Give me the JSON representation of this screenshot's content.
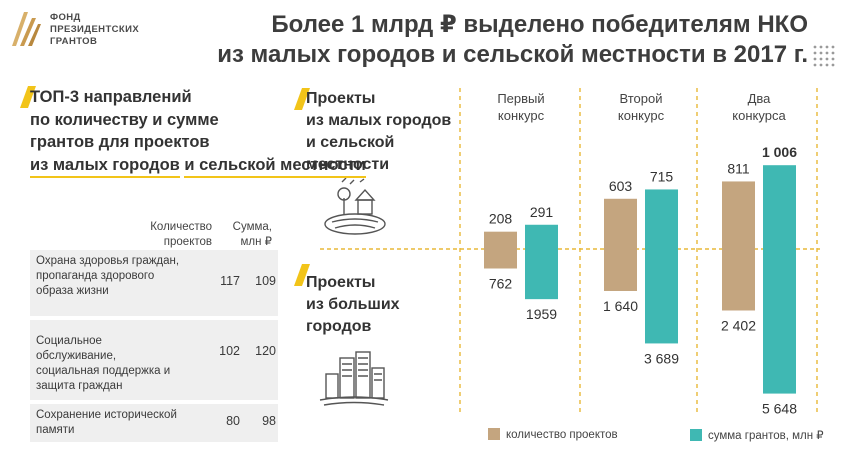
{
  "logo": {
    "lines": [
      "ФОНД",
      "ПРЕЗИДЕНТСКИХ",
      "ГРАНТОВ"
    ]
  },
  "title": {
    "line1": "Более 1 млрд ₽ выделено победителям НКО",
    "line2": "из малых городов и сельской местности в 2017 г."
  },
  "left_heading": {
    "lines": [
      "ТОП-3 направлений",
      "по количеству и сумме",
      "грантов для проектов",
      "из малых городов",
      "и сельской местности"
    ]
  },
  "table": {
    "col1": "Количество проектов",
    "col2": "Сумма, млн ₽",
    "rows": [
      {
        "name": "Охрана здоровья граждан, пропаганда здорового образа жизни",
        "count": "117",
        "sum": "109"
      },
      {
        "name": "Социальное обслуживание, социальная поддержка и защита граждан",
        "count": "102",
        "sum": "120"
      },
      {
        "name": "Сохранение исторической памяти",
        "count": "80",
        "sum": "98"
      }
    ]
  },
  "categories": {
    "small": [
      "Проекты",
      "из малых городов",
      "и сельской",
      "местности"
    ],
    "large": [
      "Проекты",
      "из больших",
      "городов"
    ]
  },
  "colors": {
    "projects": "#c4a57f",
    "grants": "#3fb8b3",
    "accent": "#f2c419",
    "divider": "#e8b838"
  },
  "icons": [
    "village-icon",
    "city-icon",
    "logo-icon"
  ],
  "chart_data": {
    "type": "bar",
    "categories": [
      "Первый конкурс",
      "Второй конкурс",
      "Два конкурса"
    ],
    "series": [
      {
        "name": "количество проектов",
        "small_towns": [
          208,
          603,
          811
        ],
        "large_cities": [
          762,
          1640,
          2402
        ],
        "small_labels": [
          "208",
          "603",
          "811"
        ],
        "large_labels": [
          "762",
          "1 640",
          "2 402"
        ]
      },
      {
        "name": "сумма грантов, млн ₽",
        "small_towns": [
          291,
          715,
          1006
        ],
        "large_cities": [
          1959,
          3689,
          5648
        ],
        "small_labels": [
          "291",
          "715",
          "1 006"
        ],
        "large_labels": [
          "1959",
          "3 689",
          "5 648"
        ]
      }
    ],
    "group_labels": [
      [
        "Первый",
        "конкурс"
      ],
      [
        "Второй",
        "конкурс"
      ],
      [
        "Два",
        "конкурса"
      ]
    ],
    "highlight": "1 006"
  },
  "legend": {
    "projects": "количество проектов",
    "grants": "сумма грантов, млн ₽"
  }
}
